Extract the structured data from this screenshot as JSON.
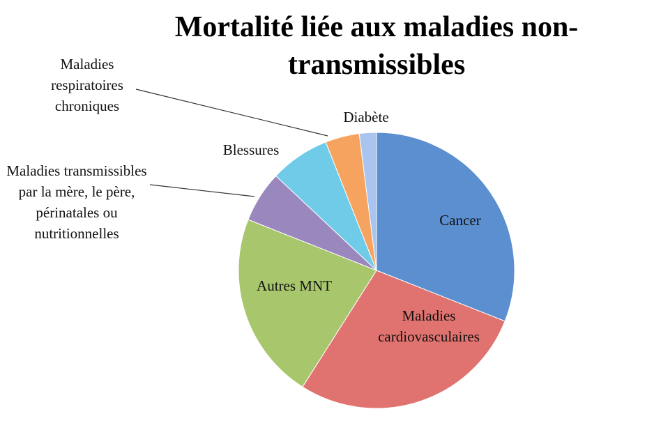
{
  "chart_data": {
    "type": "pie",
    "title": "Mortalité liée aux maladies non-transmissibles",
    "categories": [
      "Cancer",
      "Maladies cardiovasculaires",
      "Autres MNT",
      "Maladies transmissibles par la mère, le père, périnatales ou nutritionnelles",
      "Blessures",
      "Maladies respiratoires chroniques",
      "Diabète"
    ],
    "values": [
      31,
      28,
      22,
      6,
      7,
      4,
      2
    ],
    "colors": [
      "#5b8fd0",
      "#e0736f",
      "#a8c66c",
      "#9a87bd",
      "#6fcbe8",
      "#f5a35f",
      "#a9c4ee"
    ]
  }
}
